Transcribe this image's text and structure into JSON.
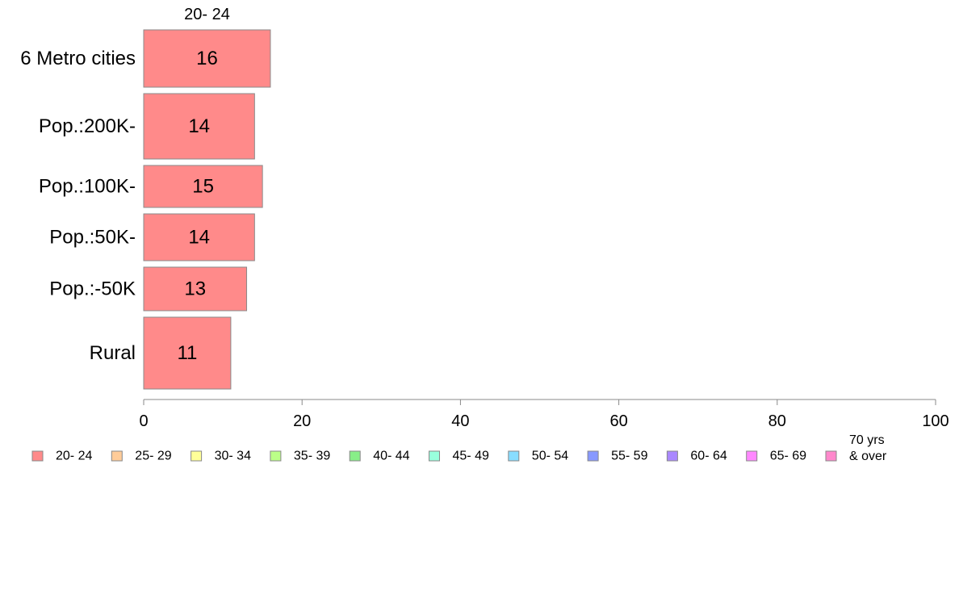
{
  "chart_data": {
    "type": "bar",
    "orientation": "horizontal",
    "stacked": true,
    "categories": [
      "6 Metro cities",
      "Pop.:200K-",
      "Pop.:100K-",
      "Pop.:50K-",
      "Pop.:-50K",
      "Rural"
    ],
    "series": [
      {
        "name": "20- 24",
        "values": [
          16,
          14,
          15,
          14,
          13,
          11
        ],
        "color": "#ff8a8a"
      }
    ],
    "column_label": "20- 24",
    "xlim": [
      0,
      100
    ],
    "x_ticks": [
      0,
      20,
      40,
      60,
      80,
      100
    ],
    "grid": false,
    "legend_position": "bottom",
    "legend": [
      {
        "label": "20- 24",
        "color": "#ff8a8a"
      },
      {
        "label": "25- 29",
        "color": "#ffcc99"
      },
      {
        "label": "30- 34",
        "color": "#ffff99"
      },
      {
        "label": "35- 39",
        "color": "#bbff88"
      },
      {
        "label": "40- 44",
        "color": "#88ee88"
      },
      {
        "label": "45- 49",
        "color": "#99ffdd"
      },
      {
        "label": "50- 54",
        "color": "#88ddff"
      },
      {
        "label": "55- 59",
        "color": "#8899ff"
      },
      {
        "label": "60- 64",
        "color": "#aa88ff"
      },
      {
        "label": "65- 69",
        "color": "#ff88ff"
      },
      {
        "label": "70 yrs\n& over",
        "color": "#ff88cc"
      }
    ]
  }
}
